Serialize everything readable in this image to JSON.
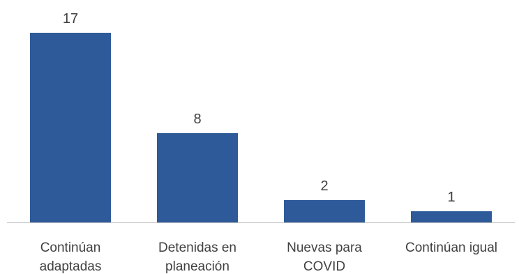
{
  "chart_data": {
    "type": "bar",
    "categories": [
      [
        "Continúan",
        "adaptadas"
      ],
      [
        "Detenidas en",
        "planeación"
      ],
      [
        "Nuevas para",
        "COVID"
      ],
      [
        "Continúan igual"
      ]
    ],
    "values": [
      17,
      8,
      2,
      1
    ],
    "title": "",
    "xlabel": "",
    "ylabel": "",
    "ylim": [
      0,
      17
    ],
    "grid": false,
    "legend": "none",
    "bar_color": "#2e5a9a",
    "text_color": "#404040",
    "axis_color": "#bfbfbf"
  }
}
